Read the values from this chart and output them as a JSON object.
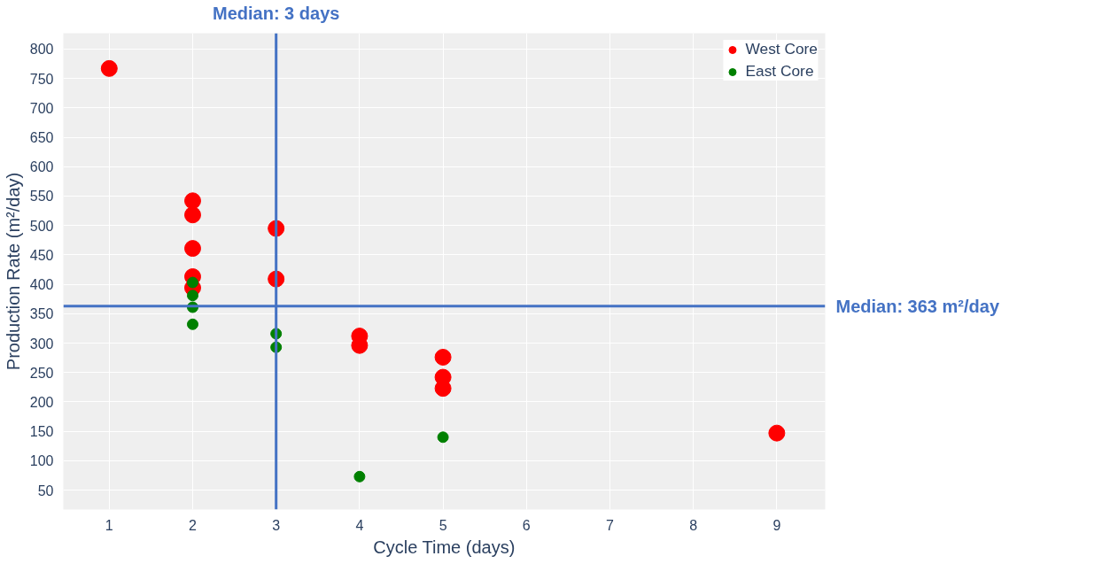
{
  "chart_data": {
    "type": "scatter",
    "xlabel": "Cycle Time (days)",
    "ylabel": "Production Rate (m²/day)",
    "xlim": [
      0.45,
      9.58
    ],
    "ylim": [
      17,
      827
    ],
    "xticks": [
      1,
      2,
      3,
      4,
      5,
      6,
      7,
      8,
      9
    ],
    "yticks": [
      50,
      100,
      150,
      200,
      250,
      300,
      350,
      400,
      450,
      500,
      550,
      600,
      650,
      700,
      750,
      800
    ],
    "grid": true,
    "legend": "top right",
    "marker": "circle",
    "series": [
      {
        "name": "West Core",
        "color": "#ff0000",
        "x": [
          1,
          2,
          2,
          2,
          2,
          2,
          3,
          3,
          4,
          4,
          5,
          5,
          5,
          9
        ],
        "values": [
          767,
          542,
          518,
          461,
          413,
          394,
          495,
          409,
          312,
          296,
          276,
          242,
          223,
          147
        ]
      },
      {
        "name": "East Core",
        "color": "#008000",
        "x": [
          2,
          2,
          2,
          2,
          3,
          3,
          4,
          5
        ],
        "values": [
          403,
          381,
          361,
          332,
          316,
          293,
          73,
          140
        ]
      }
    ],
    "ref_lines": [
      {
        "axis": "x",
        "value": 3,
        "label": "Median: 3 days",
        "color": "#4472c4"
      },
      {
        "axis": "y",
        "value": 363,
        "label": "Median: 363 m²/day",
        "color": "#4472c4"
      }
    ]
  }
}
